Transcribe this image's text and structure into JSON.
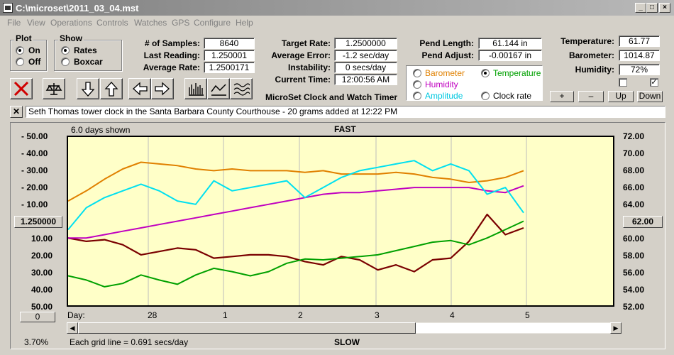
{
  "window": {
    "title": "C:\\microset\\2011_03_04.mst"
  },
  "menu": [
    "File",
    "View",
    "Operations",
    "Controls",
    "Watches",
    "GPS",
    "Configure",
    "Help"
  ],
  "plot_group": {
    "title": "Plot",
    "options": [
      "On",
      "Off"
    ],
    "selected": "On"
  },
  "show_group": {
    "title": "Show",
    "options": [
      "Rates",
      "Boxcar"
    ],
    "selected": "Rates"
  },
  "stats": {
    "samples_label": "# of Samples:",
    "samples": "8640",
    "last_reading_label": "Last Reading:",
    "last_reading": "1.250001",
    "average_rate_label": "Average Rate:",
    "average_rate": "1.2500171",
    "target_rate_label": "Target Rate:",
    "target_rate": "1.2500000",
    "average_error_label": "Average Error:",
    "average_error": "-1.2 sec/day",
    "instability_label": "Instability:",
    "instability": "0 secs/day",
    "current_time_label": "Current Time:",
    "current_time": "12:00:56 AM",
    "pend_length_label": "Pend Length:",
    "pend_length": "61.144 in",
    "pend_adjust_label": "Pend Adjust:",
    "pend_adjust": "-0.00167 in",
    "temperature_label": "Temperature:",
    "temperature": "61.77",
    "barometer_label": "Barometer:",
    "barometer": "1014.87",
    "humidity_label": "Humidity:",
    "humidity": "72%"
  },
  "app_caption": "MicroSet Clock and Watch Timer",
  "series_select": {
    "options": [
      {
        "label": "Barometer",
        "color": "#e08000",
        "selected": false
      },
      {
        "label": "Temperature",
        "color": "#00a000",
        "selected": true
      },
      {
        "label": "Humidity",
        "color": "#c000c0",
        "selected": false
      },
      {
        "label": "Clock rate",
        "color": "#000000",
        "selected": false
      },
      {
        "label": "Amplitude",
        "color": "#00c8e0",
        "selected": false
      }
    ]
  },
  "right_buttons": {
    "plus": "+",
    "minus": "–",
    "up": "Up",
    "down": "Down"
  },
  "notes": "Seth Thomas tower clock in the Santa Barbara County Courthouse - 20 grams added at 12:22 PM",
  "graph": {
    "days_shown": "6.0 days shown",
    "fast_label": "FAST",
    "slow_label": "SLOW",
    "center_rate": "1.250000",
    "center_temp": "62.00",
    "offset_button": "0",
    "zoom_percent": "3.70%",
    "grid_note": "Each grid line = 0.691 secs/day",
    "day_label": "Day:",
    "day_ticks": [
      "28",
      "1",
      "2",
      "3",
      "4",
      "5"
    ],
    "left_axis": [
      "- 50.00",
      "- 40.00",
      "- 30.00",
      "- 20.00",
      "- 10.00",
      "10.00",
      "20.00",
      "30.00",
      "40.00",
      "50.00"
    ],
    "right_axis": [
      "72.00",
      "70.00",
      "68.00",
      "66.00",
      "64.00",
      "60.00",
      "58.00",
      "56.00",
      "54.00",
      "52.00"
    ]
  },
  "chart_data": {
    "type": "line",
    "x_label": "Day:",
    "x_ticks": [
      "28",
      "1",
      "2",
      "3",
      "4",
      "5"
    ],
    "left_ylim": [
      -50,
      50
    ],
    "right_ylim": [
      52,
      72
    ],
    "series": [
      {
        "name": "Clock rate",
        "color": "#7a0000",
        "y": [
          -10,
          -12,
          -11,
          -14,
          -20,
          -18,
          -16,
          -17,
          -22,
          -21,
          -20,
          -20,
          -21,
          -24,
          -26,
          -21,
          -23,
          -29,
          -26,
          -30,
          -23,
          -22,
          -12,
          4,
          -8,
          -4
        ]
      },
      {
        "name": "Temperature",
        "color": "#00a000",
        "y": [
          55.5,
          55.0,
          54.2,
          54.6,
          55.6,
          55.0,
          54.5,
          55.6,
          56.4,
          56.0,
          55.5,
          56.0,
          57.0,
          57.5,
          57.4,
          57.6,
          57.8,
          58.0,
          58.5,
          59.0,
          59.5,
          59.7,
          59.2,
          60.0,
          61.0,
          62.0
        ]
      },
      {
        "name": "Barometer",
        "color": "#e08000",
        "y": [
          12,
          18,
          25,
          31,
          35,
          34,
          33,
          31,
          30,
          31,
          30,
          30,
          30,
          29,
          30,
          28,
          28,
          28,
          29,
          28,
          26,
          25,
          23,
          24,
          26,
          30
        ]
      },
      {
        "name": "Humidity",
        "color": "#c000c0",
        "y": [
          -10,
          -10,
          -8,
          -6,
          -4,
          -2,
          0,
          2,
          4,
          6,
          8,
          10,
          12,
          14,
          16,
          17,
          17,
          18,
          19,
          20,
          20,
          20,
          20,
          18,
          17,
          21
        ]
      },
      {
        "name": "Amplitude",
        "color": "#00e0f0",
        "y": [
          -5,
          8,
          14,
          18,
          22,
          18,
          12,
          10,
          24,
          18,
          20,
          22,
          24,
          14,
          20,
          26,
          30,
          32,
          34,
          36,
          30,
          34,
          30,
          16,
          20,
          5
        ]
      }
    ]
  }
}
